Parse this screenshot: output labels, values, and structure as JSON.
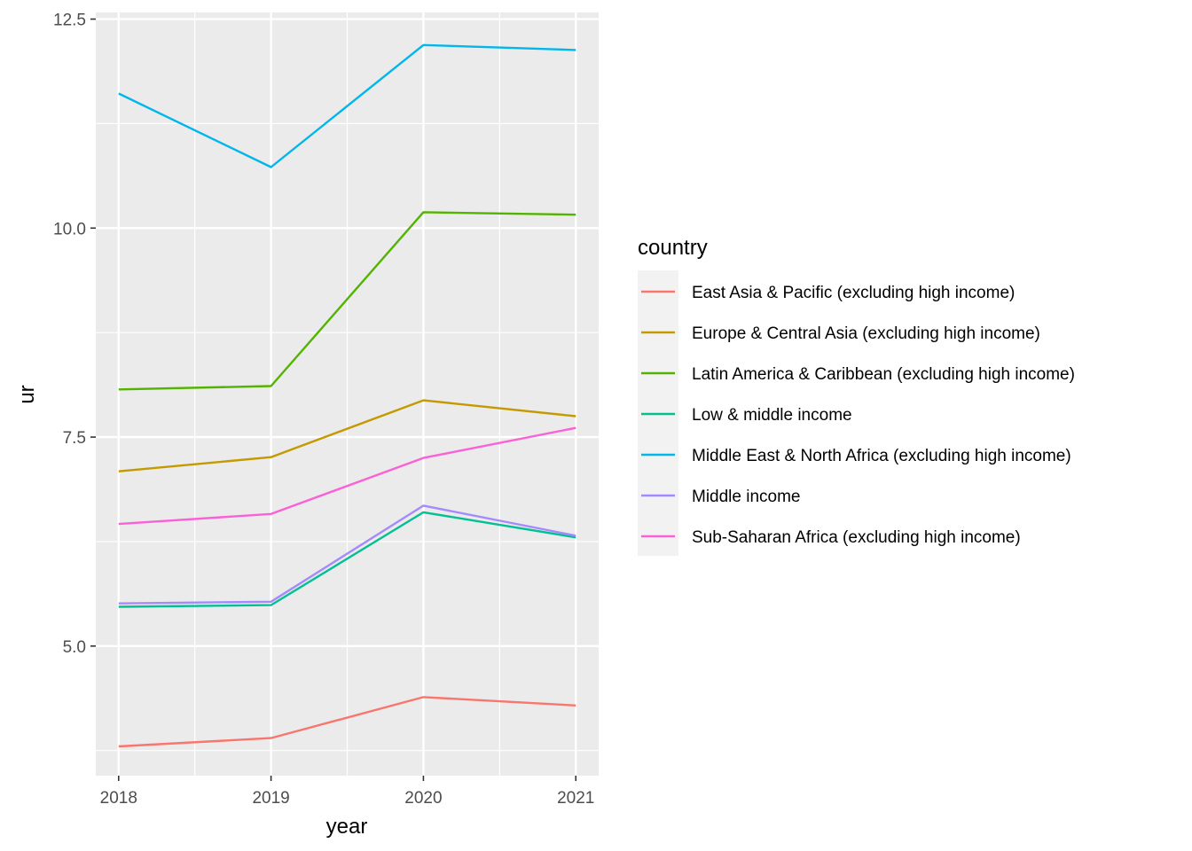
{
  "chart_data": {
    "type": "line",
    "xlabel": "year",
    "ylabel": "ur",
    "x": [
      2018,
      2019,
      2020,
      2021
    ],
    "x_tick_labels": [
      "2018",
      "2019",
      "2020",
      "2021"
    ],
    "y_ticks": [
      5.0,
      7.5,
      10.0,
      12.5
    ],
    "y_tick_labels": [
      "5.0",
      "7.5",
      "10.0",
      "12.5"
    ],
    "xlim": [
      2017.85,
      2021.15
    ],
    "ylim": [
      3.45,
      12.58
    ],
    "grid": true,
    "panel_background": "#ebebeb",
    "legend": {
      "title": "country",
      "placement": "right"
    },
    "series": [
      {
        "name": "East Asia & Pacific (excluding high income)",
        "color": "#f8766d",
        "values": [
          3.8,
          3.9,
          4.39,
          4.29
        ]
      },
      {
        "name": "Europe & Central Asia (excluding high income)",
        "color": "#c49a00",
        "values": [
          7.09,
          7.26,
          7.94,
          7.75
        ]
      },
      {
        "name": "Latin America & Caribbean (excluding high income)",
        "color": "#53b400",
        "values": [
          8.07,
          8.11,
          10.19,
          10.16
        ]
      },
      {
        "name": "Low & middle income",
        "color": "#00c094",
        "values": [
          5.47,
          5.49,
          6.6,
          6.3
        ]
      },
      {
        "name": "Middle East & North Africa (excluding high income)",
        "color": "#00b6eb",
        "values": [
          11.61,
          10.73,
          12.19,
          12.13
        ]
      },
      {
        "name": "Middle income",
        "color": "#a58aff",
        "values": [
          5.51,
          5.53,
          6.68,
          6.32
        ]
      },
      {
        "name": "Sub-Saharan Africa (excluding high income)",
        "color": "#fb61d7",
        "values": [
          6.46,
          6.58,
          7.25,
          7.61
        ]
      }
    ]
  }
}
